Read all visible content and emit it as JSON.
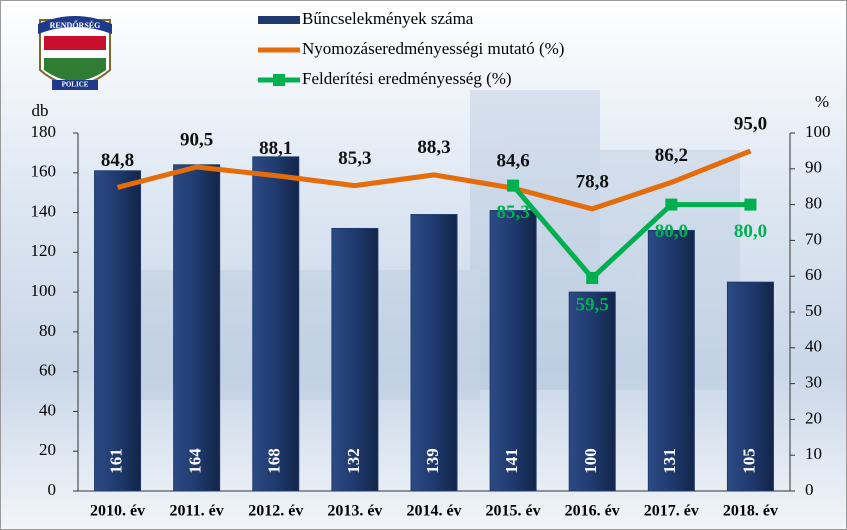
{
  "chart_data": {
    "type": "bar-line",
    "categories": [
      "2010. év",
      "2011. év",
      "2012. év",
      "2013. év",
      "2014. év",
      "2015. év",
      "2016. év",
      "2017. év",
      "2018. év"
    ],
    "ylabel": "db",
    "y2label": "%",
    "ylim": [
      0,
      180
    ],
    "yticks": [
      0,
      20,
      40,
      60,
      80,
      100,
      120,
      140,
      160,
      180
    ],
    "y2lim": [
      0,
      100
    ],
    "y2ticks": [
      0,
      10,
      20,
      30,
      40,
      50,
      60,
      70,
      80,
      90,
      100
    ],
    "series": [
      {
        "name": "Bűncselekmények száma",
        "type": "bar",
        "color": "#1f3a6e",
        "values": [
          161,
          164,
          168,
          132,
          139,
          141,
          100,
          131,
          105
        ]
      },
      {
        "name": "Nyomozáseredményességi mutató (%)",
        "type": "line",
        "axis": "y2",
        "color": "#e46c0a",
        "values": [
          84.8,
          90.5,
          88.1,
          85.3,
          88.3,
          84.6,
          78.8,
          86.2,
          95.0
        ],
        "value_labels": [
          "84,8",
          "90,5",
          "88,1",
          "85,3",
          "88,3",
          "84,6",
          "78,8",
          "86,2",
          "95,0"
        ]
      },
      {
        "name": "Felderítési eredményesség (%)",
        "type": "line",
        "axis": "y2",
        "color": "#00b050",
        "marker": "square",
        "values": [
          null,
          null,
          null,
          null,
          null,
          85.3,
          59.5,
          80.0,
          80.0
        ],
        "value_labels": [
          null,
          null,
          null,
          null,
          null,
          "85,3",
          "59,5",
          "80,0",
          "80,0"
        ]
      }
    ]
  },
  "logo": {
    "top": "RENDŐRSÉG",
    "bottom": "POLICE"
  }
}
